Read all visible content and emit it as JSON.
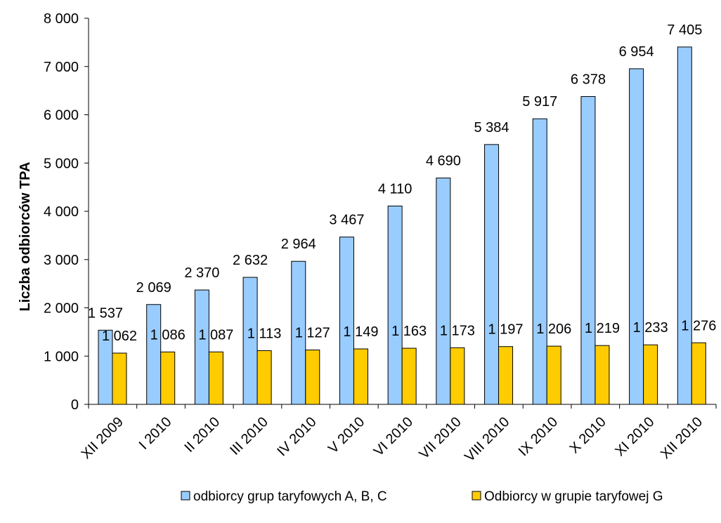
{
  "chart_data": {
    "type": "bar",
    "ylabel": "Liczba odbiorców TPA",
    "xlabel": "",
    "ylim": [
      0,
      8000
    ],
    "yticks": [
      0,
      1000,
      2000,
      3000,
      4000,
      5000,
      6000,
      7000,
      8000
    ],
    "ytick_labels": [
      "0",
      "1 000",
      "2 000",
      "3 000",
      "4 000",
      "5 000",
      "6 000",
      "7 000",
      "8 000"
    ],
    "grid": false,
    "legend_position": "bottom",
    "categories": [
      "XII 2009",
      "I 2010",
      "II 2010",
      "III 2010",
      "IV 2010",
      "V 2010",
      "VI 2010",
      "VII 2010",
      "VIII 2010",
      "IX 2010",
      "X 2010",
      "XI 2010",
      "XII 2010"
    ],
    "series": [
      {
        "name": "odbiorcy grup taryfowych A, B, C",
        "color": "#99CCFF",
        "values": [
          1537,
          2069,
          2370,
          2632,
          2964,
          3467,
          4110,
          4690,
          5384,
          5917,
          6378,
          6954,
          7405
        ],
        "labels": [
          "1 537",
          "2 069",
          "2 370",
          "2 632",
          "2 964",
          "3 467",
          "4 110",
          "4 690",
          "5 384",
          "5 917",
          "6 378",
          "6 954",
          "7 405"
        ]
      },
      {
        "name": "Odbiorcy w grupie taryfowej G",
        "color": "#FFCC00",
        "values": [
          1062,
          1086,
          1087,
          1113,
          1127,
          1149,
          1163,
          1173,
          1197,
          1206,
          1219,
          1233,
          1276
        ],
        "labels": [
          "1 062",
          "1 086",
          "1 087",
          "1 113",
          "1 127",
          "1 149",
          "1 163",
          "1 173",
          "1 197",
          "1 206",
          "1 219",
          "1 233",
          "1 276"
        ]
      }
    ]
  }
}
